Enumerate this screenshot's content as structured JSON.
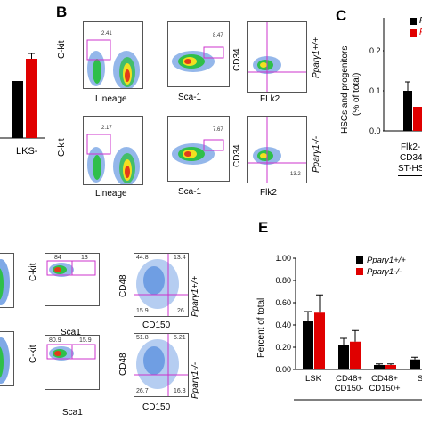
{
  "panels": {
    "b": "B",
    "c": "C",
    "e": "E"
  },
  "panel_a": {
    "xlabel": "LKS-"
  },
  "panel_b": {
    "row1": {
      "genotype": "Pparγ1+/+",
      "plot1": {
        "ylabel": "C-kit",
        "xlabel": "Lineage",
        "gate": "2.41"
      },
      "plot2": {
        "xlabel": "Sca-1",
        "gate": "8.47"
      },
      "plot3": {
        "ylabel": "CD34",
        "xlabel": "FLk2",
        "q_tl": "",
        "q_br": ""
      }
    },
    "row2": {
      "genotype": "Pparγ1-/-",
      "plot1": {
        "ylabel": "C-kit",
        "xlabel": "Lineage",
        "gate": "2.17"
      },
      "plot2": {
        "xlabel": "Sca-1",
        "gate": "7.67"
      },
      "plot3": {
        "ylabel": "CD34",
        "xlabel": "Flk2",
        "q_br": "13.2"
      }
    }
  },
  "panel_c": {
    "ylabel_line1": "HSCs and progenitors",
    "ylabel_line2": "(% of total)",
    "yticks": [
      "0.0",
      "0.1",
      "0.2"
    ],
    "xcat_line1": "Flk2-",
    "xcat_line2": "CD34",
    "xcat_line3": "ST-HS",
    "legend": [
      {
        "label": "P",
        "color": "#000000"
      },
      {
        "label": "P",
        "color": "#e00000"
      }
    ]
  },
  "panel_d": {
    "row1": {
      "genotype": "Pparγ1+/+",
      "plot2": {
        "ylabel": "C-kit",
        "xlabel": "Sca1",
        "left_num": "84",
        "right_num": "13"
      },
      "plot3": {
        "ylabel": "CD48",
        "xlabel": "CD150",
        "q_tl": "44.8",
        "q_tr": "13.4",
        "q_bl": "15.9",
        "q_br": "26"
      }
    },
    "row2": {
      "genotype": "Pparγ1-/-",
      "plot2": {
        "ylabel": "C-kit",
        "xlabel": "Sca1",
        "left_num": "80.9",
        "right_num": "15.9"
      },
      "plot3": {
        "ylabel": "CD48",
        "xlabel": "CD150",
        "q_tl": "51.8",
        "q_tr": "5.21",
        "q_bl": "26.7",
        "q_br": "16.3"
      }
    }
  },
  "chart_data": [
    {
      "type": "bar",
      "panel": "E",
      "title": "",
      "ylabel": "Percent of total",
      "xlabel": "",
      "ylim": [
        0,
        1.0
      ],
      "yticks": [
        "0.00",
        "0.20",
        "0.40",
        "0.60",
        "0.80",
        "1.00"
      ],
      "categories": [
        [
          "LSK"
        ],
        [
          "CD48+",
          "CD150-"
        ],
        [
          "CD48+",
          "CD150+"
        ],
        [
          "S"
        ]
      ],
      "series": [
        {
          "name": "Pparγ1+/+",
          "color": "#000000",
          "values": [
            0.44,
            0.22,
            0.04,
            0.09
          ],
          "errors": [
            0.08,
            0.06,
            0.01,
            0.02
          ]
        },
        {
          "name": "Pparγ1-/-",
          "color": "#e00000",
          "values": [
            0.51,
            0.25,
            0.04,
            null
          ],
          "errors": [
            0.16,
            0.1,
            0.01,
            null
          ]
        }
      ],
      "legend": "top-right"
    },
    {
      "type": "bar",
      "panel": "A",
      "categories": [
        "LKS-"
      ],
      "series": [
        {
          "name": "",
          "color": "#000000",
          "values": [
            0.85
          ]
        },
        {
          "name": "",
          "color": "#e00000",
          "values": [
            0.92
          ]
        }
      ]
    }
  ]
}
